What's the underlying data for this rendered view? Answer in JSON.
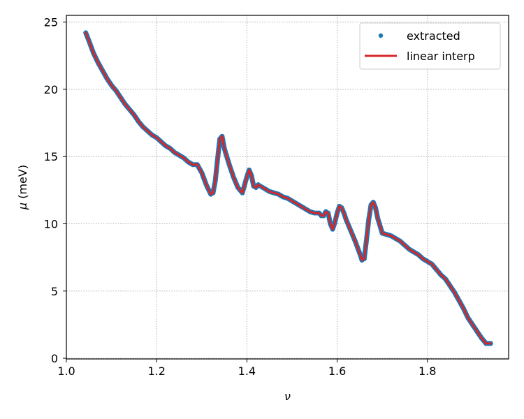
{
  "chart_data": {
    "type": "line",
    "xlabel": "ν",
    "ylabel_symbol": "μ",
    "ylabel_unit": "(meV)",
    "xlim": [
      1.0,
      1.98
    ],
    "ylim": [
      -0.05,
      25.5
    ],
    "xticks": [
      {
        "value": 1.0,
        "label": "1.0"
      },
      {
        "value": 1.2,
        "label": "1.2"
      },
      {
        "value": 1.4,
        "label": "1.4"
      },
      {
        "value": 1.6,
        "label": "1.6"
      },
      {
        "value": 1.8,
        "label": "1.8"
      }
    ],
    "yticks": [
      {
        "value": 0,
        "label": "0"
      },
      {
        "value": 5,
        "label": "5"
      },
      {
        "value": 10,
        "label": "10"
      },
      {
        "value": 15,
        "label": "15"
      },
      {
        "value": 20,
        "label": "20"
      },
      {
        "value": 25,
        "label": "25"
      }
    ],
    "grid": true,
    "legend_position": "top-right",
    "series": [
      {
        "name": "extracted",
        "kind": "scatter",
        "color": "#1f77b4",
        "x": [
          1.043,
          1.05,
          1.06,
          1.07,
          1.08,
          1.09,
          1.1,
          1.11,
          1.12,
          1.13,
          1.14,
          1.15,
          1.16,
          1.17,
          1.18,
          1.19,
          1.2,
          1.21,
          1.22,
          1.23,
          1.24,
          1.25,
          1.26,
          1.27,
          1.28,
          1.29,
          1.3,
          1.31,
          1.32,
          1.325,
          1.33,
          1.335,
          1.34,
          1.345,
          1.35,
          1.36,
          1.37,
          1.38,
          1.39,
          1.4,
          1.405,
          1.41,
          1.415,
          1.42,
          1.425,
          1.43,
          1.435,
          1.44,
          1.45,
          1.46,
          1.47,
          1.48,
          1.49,
          1.5,
          1.51,
          1.52,
          1.53,
          1.54,
          1.55,
          1.56,
          1.565,
          1.57,
          1.575,
          1.58,
          1.585,
          1.59,
          1.595,
          1.6,
          1.605,
          1.61,
          1.615,
          1.62,
          1.63,
          1.64,
          1.65,
          1.655,
          1.66,
          1.665,
          1.67,
          1.675,
          1.68,
          1.685,
          1.69,
          1.7,
          1.71,
          1.72,
          1.73,
          1.74,
          1.75,
          1.76,
          1.77,
          1.78,
          1.79,
          1.8,
          1.81,
          1.82,
          1.83,
          1.84,
          1.85,
          1.86,
          1.87,
          1.88,
          1.89,
          1.9,
          1.91,
          1.92,
          1.93,
          1.94
        ],
        "y": [
          24.2,
          23.6,
          22.7,
          22.0,
          21.4,
          20.8,
          20.3,
          19.9,
          19.4,
          18.9,
          18.5,
          18.1,
          17.6,
          17.2,
          16.9,
          16.6,
          16.4,
          16.1,
          15.8,
          15.6,
          15.3,
          15.1,
          14.9,
          14.6,
          14.4,
          14.4,
          13.8,
          12.9,
          12.2,
          12.3,
          13.2,
          14.8,
          16.3,
          16.5,
          15.6,
          14.5,
          13.5,
          12.7,
          12.3,
          13.5,
          14.0,
          13.6,
          12.8,
          12.7,
          12.9,
          12.8,
          12.7,
          12.6,
          12.4,
          12.3,
          12.2,
          12.0,
          11.9,
          11.7,
          11.5,
          11.3,
          11.1,
          10.9,
          10.8,
          10.8,
          10.6,
          10.6,
          10.9,
          10.8,
          10.0,
          9.6,
          10.1,
          10.8,
          11.3,
          11.2,
          10.8,
          10.3,
          9.5,
          8.7,
          7.8,
          7.3,
          7.4,
          8.8,
          10.3,
          11.4,
          11.6,
          11.2,
          10.4,
          9.3,
          9.2,
          9.1,
          8.9,
          8.7,
          8.4,
          8.1,
          7.9,
          7.7,
          7.4,
          7.2,
          7.0,
          6.6,
          6.2,
          5.9,
          5.4,
          4.9,
          4.3,
          3.7,
          3.0,
          2.5,
          2.0,
          1.5,
          1.1,
          1.1
        ]
      },
      {
        "name": "linear interp",
        "kind": "line",
        "color": "#d62728"
      }
    ]
  }
}
